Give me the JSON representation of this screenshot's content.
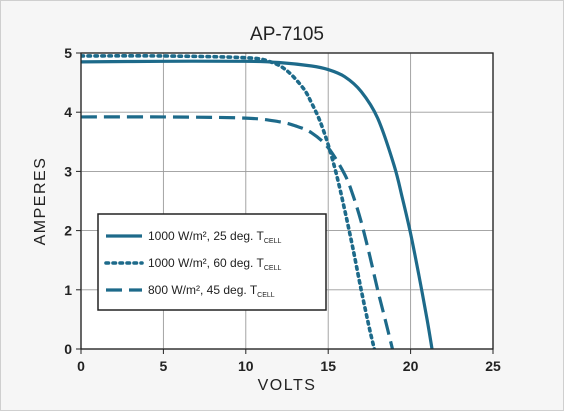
{
  "chart_data": {
    "type": "line",
    "title": "AP-7105",
    "xlabel": "VOLTS",
    "ylabel": "AMPERES",
    "xlim": [
      0,
      25
    ],
    "ylim": [
      0,
      5
    ],
    "xticks": [
      0,
      5,
      10,
      15,
      20,
      25
    ],
    "yticks": [
      0,
      1,
      2,
      3,
      4,
      5
    ],
    "grid": true,
    "legend_position": "bottom-left",
    "series": [
      {
        "name": "1000 W/m², 25 deg. T",
        "subscript": "CELL",
        "style": "solid",
        "color": "#1d6a8a",
        "x": [
          0,
          5,
          10,
          12,
          14,
          15,
          16,
          17,
          18,
          19,
          19.5,
          20,
          20.5,
          21,
          21.3
        ],
        "y": [
          4.85,
          4.86,
          4.86,
          4.84,
          4.78,
          4.72,
          4.6,
          4.35,
          3.9,
          3.1,
          2.55,
          1.95,
          1.25,
          0.5,
          0
        ]
      },
      {
        "name": "1000 W/m², 60 deg. T",
        "subscript": "CELL",
        "style": "dotted",
        "color": "#1d6a8a",
        "x": [
          0,
          5,
          10,
          11.5,
          12.5,
          13.5,
          14,
          14.5,
          15,
          15.5,
          16,
          16.5,
          17,
          17.5,
          17.8
        ],
        "y": [
          4.95,
          4.95,
          4.92,
          4.85,
          4.7,
          4.4,
          4.15,
          3.85,
          3.45,
          2.95,
          2.35,
          1.7,
          1.0,
          0.35,
          0
        ]
      },
      {
        "name": "800 W/m², 45 deg. T",
        "subscript": "CELL",
        "style": "dashed",
        "color": "#1d6a8a",
        "x": [
          0,
          5,
          10,
          12,
          13,
          14,
          15,
          16,
          16.5,
          17,
          17.5,
          18,
          18.5,
          18.9
        ],
        "y": [
          3.92,
          3.92,
          3.9,
          3.84,
          3.77,
          3.65,
          3.4,
          2.95,
          2.6,
          2.15,
          1.6,
          1.0,
          0.45,
          0
        ]
      }
    ]
  }
}
